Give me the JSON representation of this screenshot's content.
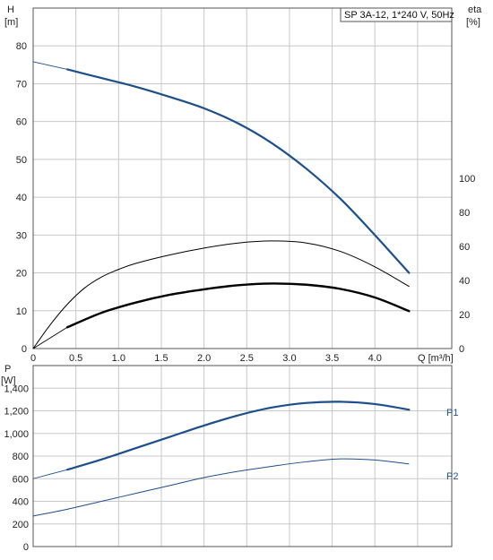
{
  "chart_data": [
    {
      "type": "line",
      "title": "SP 3A-12, 1*240 V, 50Hz",
      "xlabel": "Q [m³/h]",
      "ylabel_left": [
        "H",
        "[m]"
      ],
      "ylabel_right": [
        "eta",
        "[%]"
      ],
      "xlim": [
        0,
        4.9
      ],
      "ylim": [
        0,
        90
      ],
      "y2lim": [
        0,
        200
      ],
      "grid": true,
      "x_ticks": [
        "0",
        "0.5",
        "1.0",
        "1.5",
        "2.0",
        "2.5",
        "3.0",
        "3.5",
        "4.0"
      ],
      "y_ticks": [
        "0",
        "10",
        "20",
        "30",
        "40",
        "50",
        "60",
        "70",
        "80"
      ],
      "y2_ticks": [
        "0",
        "20",
        "40",
        "60",
        "80",
        "100"
      ],
      "colors": {
        "head": "#1d4f8a",
        "thin": "#000000",
        "thick": "#000000"
      },
      "series": [
        {
          "axis": "left",
          "style": "head-thin",
          "x": [
            0,
            0.4
          ],
          "y": [
            75.8,
            73.8
          ]
        },
        {
          "axis": "left",
          "style": "head",
          "x": [
            0.4,
            0.8,
            1.2,
            1.6,
            2.0,
            2.4,
            2.8,
            3.2,
            3.6,
            4.0,
            4.4
          ],
          "y": [
            73.8,
            71.5,
            69.2,
            66.5,
            63.5,
            59.5,
            54.2,
            47.5,
            39.5,
            30.0,
            20.0
          ]
        },
        {
          "axis": "right",
          "style": "thin",
          "x": [
            0,
            0.2,
            0.4,
            0.6,
            0.8,
            1.0,
            1.2,
            1.6,
            2.0,
            2.4,
            2.8,
            3.2,
            3.6,
            4.0,
            4.4
          ],
          "y": [
            0,
            14,
            26,
            35.5,
            42,
            46.5,
            50,
            55,
            59,
            62,
            63.2,
            62,
            57,
            48,
            36.5
          ]
        },
        {
          "axis": "right",
          "style": "thick-thin",
          "x": [
            0,
            0.4
          ],
          "y": [
            0,
            12.5
          ]
        },
        {
          "axis": "right",
          "style": "thick",
          "x": [
            0.4,
            0.8,
            1.2,
            1.6,
            2.0,
            2.4,
            2.8,
            3.2,
            3.6,
            4.0,
            4.4
          ],
          "y": [
            12.5,
            21,
            27,
            31.6,
            34.8,
            37.2,
            38.2,
            37.5,
            35,
            30,
            22
          ]
        }
      ]
    },
    {
      "type": "line",
      "xlim": [
        0,
        4.9
      ],
      "ylim": [
        0,
        1600
      ],
      "ylabel": [
        "P",
        "[W]"
      ],
      "y_ticks": [
        "0",
        "200",
        "400",
        "600",
        "800",
        "1,000",
        "1,200",
        "1,400"
      ],
      "grid": true,
      "colors": {
        "line": "#1d4f8a"
      },
      "series": [
        {
          "name": "P1",
          "style": "thick",
          "thin_until": 0.4,
          "x": [
            0,
            0.4,
            0.8,
            1.2,
            1.6,
            2.0,
            2.4,
            2.8,
            3.2,
            3.6,
            4.0,
            4.4
          ],
          "y": [
            600,
            680,
            770,
            870,
            970,
            1070,
            1160,
            1230,
            1270,
            1280,
            1260,
            1210
          ]
        },
        {
          "name": "P2",
          "style": "thin",
          "x": [
            0,
            0.4,
            0.8,
            1.2,
            1.6,
            2.0,
            2.4,
            2.8,
            3.2,
            3.6,
            4.0,
            4.4
          ],
          "y": [
            270,
            330,
            400,
            470,
            540,
            610,
            665,
            710,
            750,
            775,
            765,
            730
          ]
        }
      ]
    }
  ]
}
